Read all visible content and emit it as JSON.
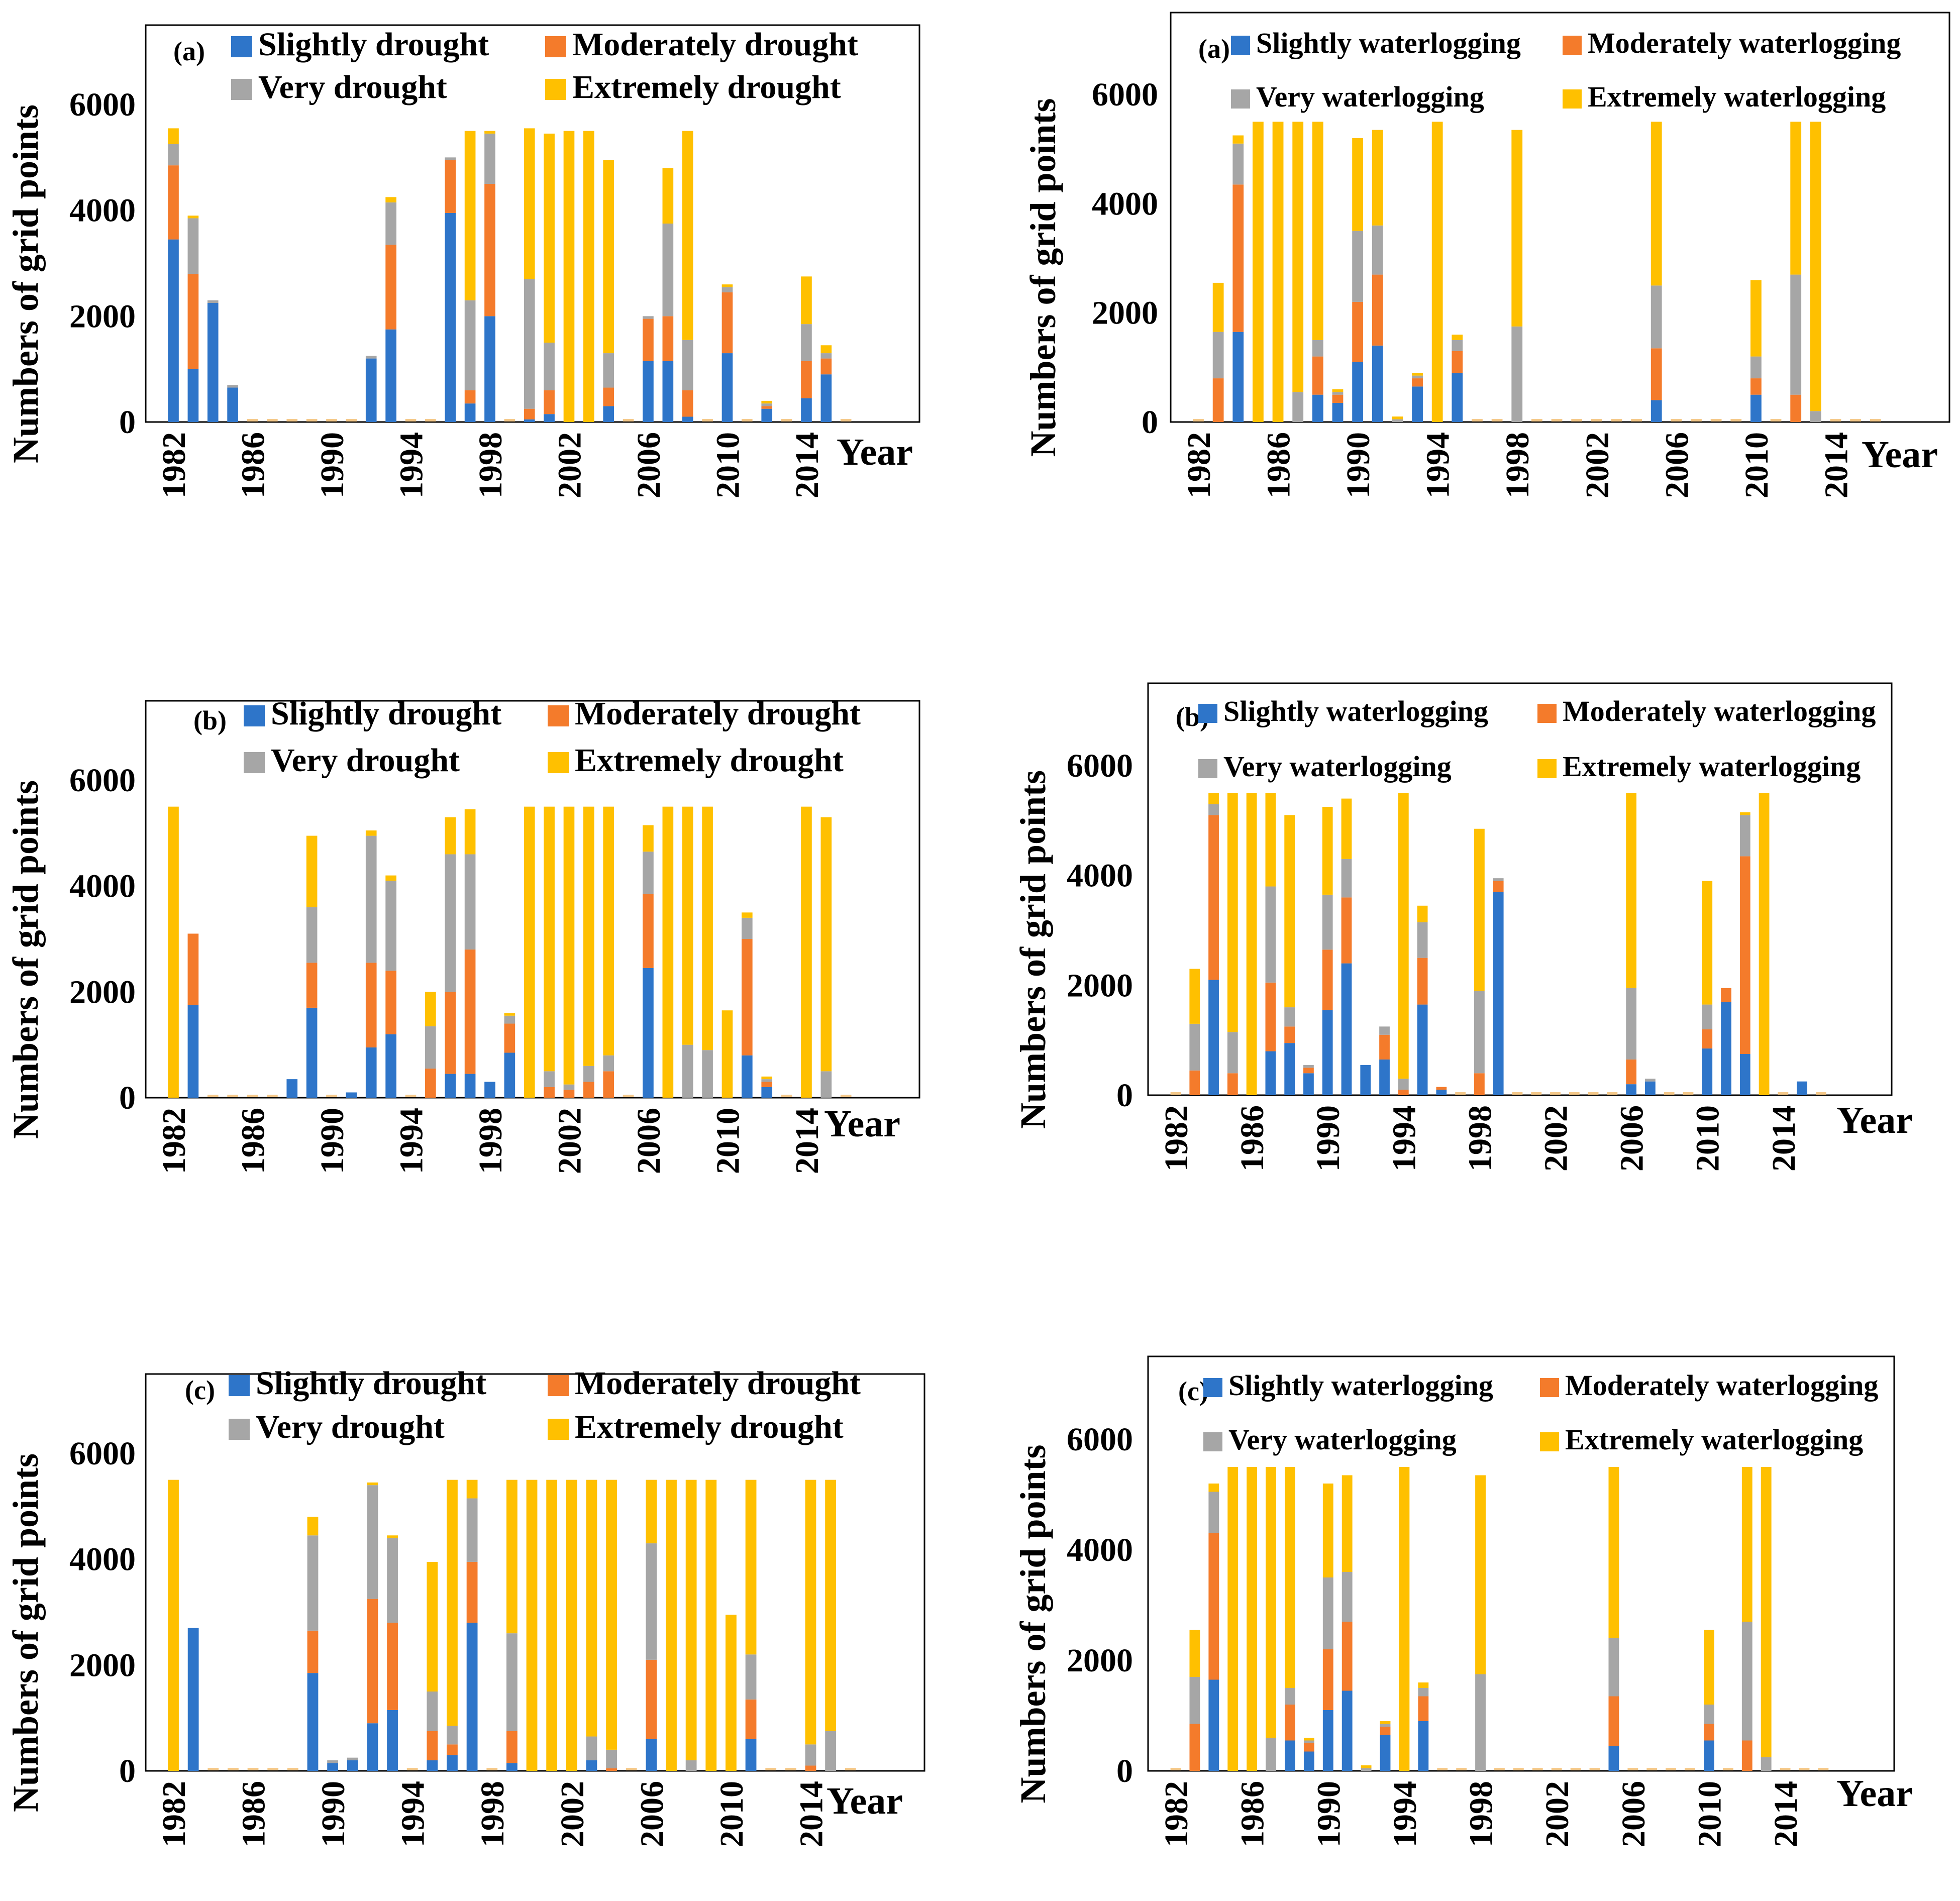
{
  "colors": {
    "slightly": "#2E75C9",
    "moderately": "#F47B2B",
    "very": "#A6A6A6",
    "extremely": "#FFC000"
  },
  "common": {
    "ylabel": "Numbers of grid points",
    "xlabel": "Year",
    "yticks": [
      0,
      2000,
      4000,
      6000
    ],
    "ylim": [
      0,
      7500
    ],
    "xticks": [
      1982,
      1986,
      1990,
      1994,
      1998,
      2002,
      2006,
      2010,
      2014
    ],
    "years": [
      1982,
      1983,
      1984,
      1985,
      1986,
      1987,
      1988,
      1989,
      1990,
      1991,
      1992,
      1993,
      1994,
      1995,
      1996,
      1997,
      1998,
      1999,
      2000,
      2001,
      2002,
      2003,
      2004,
      2005,
      2006,
      2007,
      2008,
      2009,
      2010,
      2011,
      2012,
      2013,
      2014,
      2015,
      2016
    ]
  },
  "chart_data": [
    {
      "type": "bar",
      "stacked": true,
      "panel": "(a)",
      "legend": [
        "Slightly drought",
        "Moderately drought",
        "Very drought",
        "Extremely drought"
      ],
      "series": [
        {
          "name": "Slightly drought",
          "values": [
            3450,
            1000,
            2250,
            650,
            0,
            0,
            0,
            0,
            0,
            0,
            1200,
            1750,
            0,
            0,
            3950,
            350,
            2000,
            0,
            50,
            150,
            0,
            0,
            300,
            0,
            1150,
            1150,
            100,
            0,
            1300,
            0,
            250,
            0,
            450,
            900,
            0
          ]
        },
        {
          "name": "Moderately drought",
          "values": [
            1400,
            1800,
            0,
            0,
            0,
            0,
            0,
            0,
            0,
            0,
            0,
            1600,
            0,
            0,
            1000,
            250,
            2500,
            0,
            200,
            450,
            0,
            0,
            350,
            0,
            800,
            850,
            500,
            0,
            1150,
            0,
            50,
            0,
            700,
            300,
            0
          ]
        },
        {
          "name": "Very drought",
          "values": [
            400,
            1050,
            50,
            50,
            0,
            0,
            0,
            0,
            0,
            0,
            50,
            800,
            0,
            0,
            50,
            1700,
            950,
            0,
            2450,
            900,
            0,
            0,
            650,
            0,
            50,
            1750,
            950,
            0,
            100,
            0,
            50,
            0,
            700,
            100,
            0
          ]
        },
        {
          "name": "Extremely drought",
          "values": [
            300,
            50,
            0,
            0,
            0,
            0,
            0,
            0,
            0,
            0,
            0,
            100,
            0,
            0,
            0,
            3200,
            50,
            0,
            2850,
            3950,
            5500,
            5500,
            3650,
            0,
            0,
            1050,
            3950,
            0,
            50,
            0,
            50,
            0,
            900,
            150,
            0
          ]
        }
      ]
    },
    {
      "type": "bar",
      "stacked": true,
      "panel": "(b)",
      "legend": [
        "Slightly drought",
        "Moderately drought",
        "Very drought",
        "Extremely drought"
      ],
      "series": [
        {
          "name": "Slightly drought",
          "values": [
            0,
            1750,
            0,
            0,
            0,
            0,
            350,
            1700,
            0,
            100,
            950,
            1200,
            0,
            0,
            450,
            450,
            300,
            850,
            0,
            0,
            0,
            0,
            0,
            0,
            2450,
            0,
            0,
            0,
            0,
            800,
            200,
            0,
            0,
            0,
            0
          ]
        },
        {
          "name": "Moderately drought",
          "values": [
            0,
            1350,
            0,
            0,
            0,
            0,
            0,
            850,
            0,
            0,
            1600,
            1200,
            0,
            550,
            1550,
            2350,
            0,
            550,
            0,
            200,
            150,
            300,
            500,
            0,
            1400,
            0,
            0,
            0,
            0,
            2200,
            100,
            0,
            0,
            0,
            0
          ]
        },
        {
          "name": "Very drought",
          "values": [
            0,
            0,
            0,
            0,
            0,
            0,
            0,
            1050,
            0,
            0,
            2400,
            1700,
            0,
            800,
            2600,
            1800,
            0,
            150,
            0,
            300,
            100,
            300,
            300,
            0,
            800,
            0,
            1000,
            900,
            0,
            400,
            50,
            0,
            0,
            500,
            0
          ]
        },
        {
          "name": "Extremely drought",
          "values": [
            5500,
            0,
            0,
            0,
            0,
            0,
            0,
            1350,
            0,
            0,
            100,
            100,
            0,
            650,
            700,
            850,
            0,
            50,
            5500,
            5000,
            5250,
            4900,
            4700,
            0,
            500,
            5500,
            4500,
            4600,
            1650,
            100,
            50,
            0,
            5500,
            4800,
            0
          ]
        }
      ]
    },
    {
      "type": "bar",
      "stacked": true,
      "panel": "(c)",
      "legend": [
        "Slightly drought",
        "Moderately drought",
        "Very drought",
        "Extremely drought"
      ],
      "series": [
        {
          "name": "Slightly drought",
          "values": [
            0,
            2700,
            0,
            0,
            0,
            0,
            0,
            1850,
            150,
            200,
            900,
            1150,
            0,
            200,
            300,
            2800,
            0,
            150,
            0,
            0,
            0,
            200,
            0,
            0,
            600,
            0,
            0,
            0,
            0,
            600,
            0,
            0,
            0,
            0,
            0
          ]
        },
        {
          "name": "Moderately drought",
          "values": [
            0,
            0,
            0,
            0,
            0,
            0,
            0,
            800,
            0,
            0,
            2350,
            1650,
            0,
            550,
            200,
            1150,
            0,
            600,
            0,
            0,
            0,
            0,
            50,
            0,
            1500,
            0,
            0,
            0,
            0,
            750,
            0,
            0,
            100,
            0,
            0
          ]
        },
        {
          "name": "Very drought",
          "values": [
            0,
            0,
            0,
            0,
            0,
            0,
            0,
            1800,
            50,
            50,
            2150,
            1600,
            0,
            750,
            350,
            1200,
            0,
            1850,
            0,
            0,
            0,
            450,
            350,
            0,
            2200,
            0,
            200,
            0,
            0,
            850,
            0,
            0,
            400,
            750,
            0
          ]
        },
        {
          "name": "Extremely drought",
          "values": [
            5500,
            0,
            0,
            0,
            0,
            0,
            0,
            350,
            0,
            0,
            50,
            50,
            0,
            2450,
            4650,
            350,
            0,
            2900,
            5500,
            5500,
            5500,
            4850,
            5100,
            0,
            1200,
            5500,
            5300,
            5500,
            2950,
            3300,
            0,
            0,
            5000,
            4750,
            0
          ]
        }
      ]
    },
    {
      "type": "bar",
      "stacked": true,
      "panel": "(a)",
      "legend": [
        "Slightly waterlogging",
        "Moderately waterlogging",
        "Very waterlogging",
        "Extremely waterlogging"
      ],
      "series": [
        {
          "name": "Slightly waterlogging",
          "values": [
            0,
            0,
            1650,
            0,
            0,
            0,
            500,
            350,
            1100,
            1400,
            0,
            650,
            0,
            900,
            0,
            0,
            0,
            0,
            0,
            0,
            0,
            0,
            0,
            400,
            0,
            0,
            0,
            0,
            500,
            0,
            0,
            0,
            0,
            0,
            0
          ]
        },
        {
          "name": "Moderately waterlogging",
          "values": [
            0,
            800,
            2700,
            0,
            0,
            0,
            700,
            150,
            1100,
            1300,
            0,
            150,
            0,
            400,
            0,
            0,
            0,
            0,
            0,
            0,
            0,
            0,
            0,
            950,
            0,
            0,
            0,
            0,
            300,
            0,
            500,
            0,
            0,
            0,
            0
          ]
        },
        {
          "name": "Very waterlogging",
          "values": [
            0,
            850,
            750,
            0,
            0,
            550,
            300,
            50,
            1300,
            900,
            50,
            50,
            0,
            200,
            0,
            0,
            1750,
            0,
            0,
            0,
            0,
            0,
            0,
            1150,
            0,
            0,
            0,
            0,
            400,
            0,
            2200,
            200,
            0,
            0,
            0
          ]
        },
        {
          "name": "Extremely waterlogging",
          "values": [
            0,
            900,
            150,
            5500,
            5500,
            4950,
            4000,
            50,
            1700,
            1750,
            50,
            50,
            5500,
            100,
            0,
            0,
            3600,
            0,
            0,
            0,
            0,
            0,
            0,
            3000,
            0,
            0,
            0,
            0,
            1400,
            0,
            2800,
            5300,
            0,
            0,
            0
          ]
        }
      ]
    },
    {
      "type": "bar",
      "stacked": true,
      "panel": "(b)",
      "legend": [
        "Slightly waterlogging",
        "Moderately waterlogging",
        "Very waterlogging",
        "Extremely waterlogging"
      ],
      "series": [
        {
          "name": "Slightly waterlogging",
          "values": [
            0,
            0,
            2100,
            0,
            0,
            800,
            950,
            400,
            1550,
            2400,
            550,
            650,
            0,
            1650,
            100,
            0,
            0,
            3700,
            0,
            0,
            0,
            0,
            0,
            0,
            200,
            250,
            0,
            0,
            850,
            1700,
            750,
            0,
            0,
            250,
            0
          ]
        },
        {
          "name": "Moderately waterlogging",
          "values": [
            0,
            450,
            3000,
            400,
            0,
            1250,
            300,
            100,
            1100,
            1200,
            0,
            450,
            100,
            850,
            50,
            0,
            400,
            200,
            0,
            0,
            0,
            0,
            0,
            0,
            450,
            0,
            0,
            0,
            350,
            250,
            3600,
            0,
            0,
            0,
            0
          ]
        },
        {
          "name": "Very waterlogging",
          "values": [
            0,
            850,
            200,
            750,
            0,
            1750,
            350,
            50,
            1000,
            700,
            0,
            150,
            200,
            650,
            0,
            0,
            1500,
            50,
            0,
            0,
            0,
            0,
            0,
            0,
            1300,
            50,
            0,
            0,
            450,
            0,
            750,
            0,
            0,
            0,
            0
          ]
        },
        {
          "name": "Extremely waterlogging",
          "values": [
            0,
            1000,
            200,
            4350,
            5500,
            1700,
            3500,
            0,
            1600,
            1100,
            0,
            0,
            5200,
            300,
            0,
            0,
            2950,
            0,
            0,
            0,
            0,
            0,
            0,
            0,
            3550,
            0,
            0,
            0,
            2250,
            0,
            50,
            5500,
            0,
            0,
            0
          ]
        }
      ]
    },
    {
      "type": "bar",
      "stacked": true,
      "panel": "(c)",
      "legend": [
        "Slightly waterlogging",
        "Moderately waterlogging",
        "Very waterlogging",
        "Extremely waterlogging"
      ],
      "series": [
        {
          "name": "Slightly waterlogging",
          "values": [
            0,
            0,
            1650,
            0,
            0,
            0,
            550,
            350,
            1100,
            1450,
            0,
            650,
            0,
            900,
            0,
            0,
            0,
            0,
            0,
            0,
            0,
            0,
            0,
            450,
            0,
            0,
            0,
            0,
            550,
            0,
            0,
            0,
            0,
            0,
            0
          ]
        },
        {
          "name": "Moderately waterlogging",
          "values": [
            0,
            850,
            2650,
            0,
            0,
            0,
            650,
            150,
            1100,
            1250,
            0,
            150,
            0,
            450,
            0,
            0,
            0,
            0,
            0,
            0,
            0,
            0,
            0,
            900,
            0,
            0,
            0,
            0,
            300,
            0,
            550,
            0,
            0,
            0,
            0
          ]
        },
        {
          "name": "Very waterlogging",
          "values": [
            0,
            850,
            750,
            0,
            0,
            600,
            300,
            50,
            1300,
            900,
            50,
            50,
            0,
            150,
            0,
            0,
            1750,
            0,
            0,
            0,
            0,
            0,
            0,
            1050,
            0,
            0,
            0,
            0,
            350,
            0,
            2150,
            250,
            0,
            0,
            0
          ]
        },
        {
          "name": "Extremely waterlogging",
          "values": [
            0,
            850,
            150,
            5500,
            5500,
            4900,
            4000,
            50,
            1700,
            1750,
            50,
            50,
            5500,
            100,
            0,
            0,
            3600,
            0,
            0,
            0,
            0,
            0,
            0,
            3100,
            0,
            0,
            0,
            0,
            1350,
            0,
            2800,
            5250,
            0,
            0,
            0
          ]
        }
      ]
    }
  ]
}
